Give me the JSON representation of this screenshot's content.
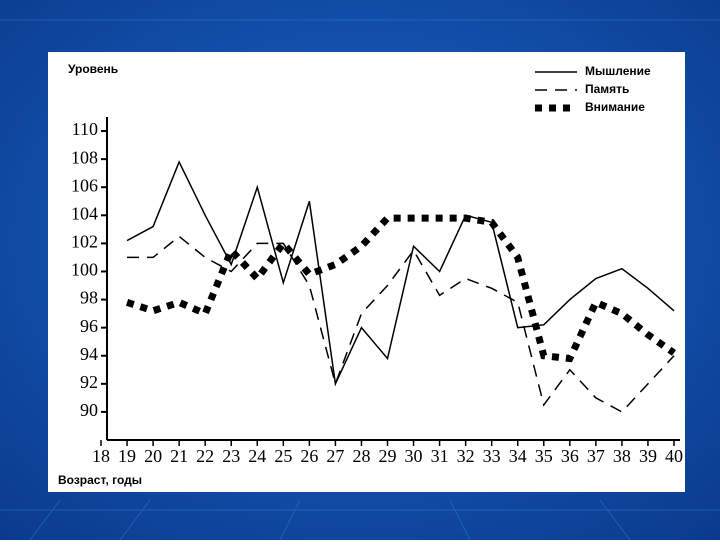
{
  "chart_data": {
    "type": "line",
    "y_label": "Уровень",
    "x_label": "Возраст, годы",
    "x": [
      19,
      20,
      21,
      22,
      23,
      24,
      25,
      26,
      27,
      28,
      29,
      30,
      31,
      32,
      33,
      34,
      35,
      36,
      37,
      38,
      39,
      40
    ],
    "series": [
      {
        "name": "Мышление",
        "color": "#000000",
        "style": "solid",
        "values": [
          102.2,
          103.2,
          107.8,
          104,
          100.5,
          106,
          99.2,
          105,
          92,
          96,
          93.8,
          101.8,
          100,
          104,
          103.5,
          96,
          96.2,
          98,
          99.5,
          100.2,
          98.8,
          97.2
        ]
      },
      {
        "name": "Память",
        "color": "#000000",
        "style": "dashed",
        "values": [
          101,
          101,
          102.5,
          101,
          100,
          102,
          102,
          99,
          92,
          97,
          99,
          101.5,
          98.3,
          99.5,
          98.8,
          97.8,
          90.5,
          93,
          91,
          90,
          92,
          94
        ]
      },
      {
        "name": "Внимание",
        "color": "#000000",
        "style": "dotted",
        "values": [
          97.8,
          97.2,
          97.8,
          97,
          101.5,
          99.5,
          102,
          99.8,
          100.5,
          101.8,
          103.8,
          103.8,
          103.8,
          103.8,
          103.5,
          101,
          94,
          93.8,
          97.8,
          97,
          95.5,
          94.2
        ]
      }
    ],
    "xlim": [
      18,
      40
    ],
    "xticks": [
      18,
      19,
      20,
      21,
      22,
      23,
      24,
      25,
      26,
      27,
      28,
      29,
      30,
      31,
      32,
      33,
      34,
      35,
      36,
      37,
      38,
      39,
      40
    ],
    "ylim": [
      88,
      111
    ],
    "yticks": [
      90,
      92,
      94,
      96,
      98,
      100,
      102,
      104,
      106,
      108,
      110
    ],
    "grid": false,
    "legend": "top-right"
  }
}
